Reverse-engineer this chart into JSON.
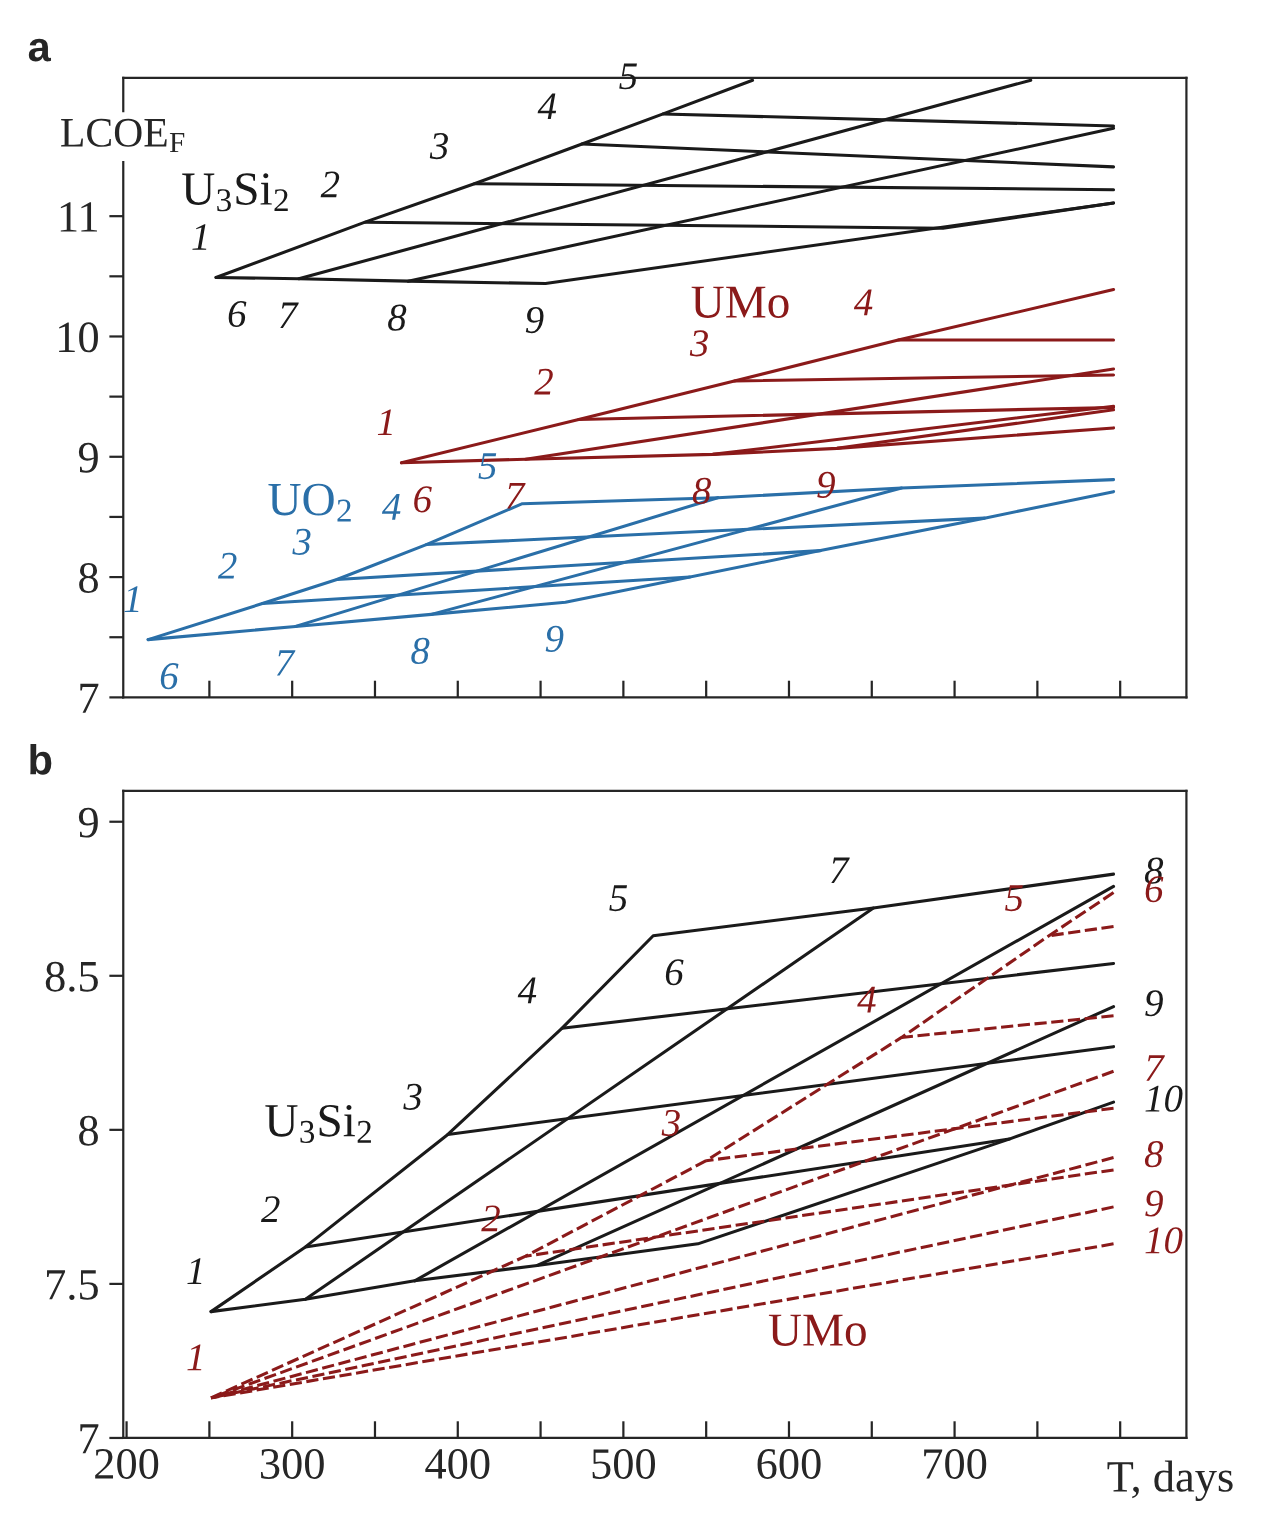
{
  "chart_data": [
    {
      "type": "line",
      "title": "a",
      "ylabel": "LCOE$_{F}$",
      "xlim": [
        198,
        840
      ],
      "xticks": [
        {
          "value": 250,
          "label": null
        },
        {
          "value": 300,
          "label": null
        },
        {
          "value": 350,
          "label": null
        },
        {
          "value": 400,
          "label": null
        },
        {
          "value": 450,
          "label": null
        },
        {
          "value": 500,
          "label": null
        },
        {
          "value": 550,
          "label": null
        },
        {
          "value": 600,
          "label": null
        },
        {
          "value": 650,
          "label": null
        },
        {
          "value": 700,
          "label": null
        },
        {
          "value": 750,
          "label": null
        },
        {
          "value": 800,
          "label": null
        }
      ],
      "ylim": [
        7,
        12.15
      ],
      "yticks": [
        7,
        {
          "value": 7.5,
          "label": null
        },
        8,
        {
          "value": 8.5,
          "label": null
        },
        9,
        {
          "value": 9.5,
          "label": null
        },
        10,
        {
          "value": 10.5,
          "label": null
        },
        11
      ],
      "tick_labels": "y",
      "series": [
        {
          "name": "U$_{3}$Si$_{2}$",
          "color": "#1a1a1a",
          "x": [
            254,
            344,
            410,
            475,
            524,
            578
          ],
          "values": [
            10.49,
            10.95,
            11.27,
            11.6,
            11.85,
            12.13
          ]
        },
        {
          "color": "#1a1a1a",
          "x": [
            254,
            304,
            370,
            453,
            796
          ],
          "values": [
            10.49,
            10.48,
            10.46,
            10.44,
            11.11
          ]
        },
        {
          "color": "#1a1a1a",
          "x": [
            344,
            693,
            796
          ],
          "values": [
            10.95,
            10.9,
            11.11
          ]
        },
        {
          "color": "#1a1a1a",
          "x": [
            410,
            796
          ],
          "values": [
            11.27,
            11.22
          ]
        },
        {
          "color": "#1a1a1a",
          "x": [
            475,
            796
          ],
          "values": [
            11.6,
            11.41
          ]
        },
        {
          "color": "#1a1a1a",
          "x": [
            524,
            796
          ],
          "values": [
            11.85,
            11.75
          ]
        },
        {
          "color": "#1a1a1a",
          "x": [
            304,
            746
          ],
          "values": [
            10.48,
            12.13
          ]
        },
        {
          "color": "#1a1a1a",
          "x": [
            370,
            796
          ],
          "values": [
            10.46,
            11.73
          ]
        },
        {
          "name": "UMo",
          "color": "#8b1a1a",
          "x": [
            366,
            473,
            567,
            666,
            796
          ],
          "values": [
            8.95,
            9.31,
            9.63,
            9.97,
            10.39
          ]
        },
        {
          "color": "#8b1a1a",
          "x": [
            366,
            441,
            554,
            629,
            796
          ],
          "values": [
            8.95,
            8.98,
            9.02,
            9.07,
            9.24
          ]
        },
        {
          "color": "#8b1a1a",
          "x": [
            473,
            796
          ],
          "values": [
            9.31,
            9.41
          ]
        },
        {
          "color": "#8b1a1a",
          "x": [
            567,
            796
          ],
          "values": [
            9.63,
            9.68
          ]
        },
        {
          "color": "#8b1a1a",
          "x": [
            666,
            796
          ],
          "values": [
            9.97,
            9.97
          ]
        },
        {
          "color": "#8b1a1a",
          "x": [
            441,
            796
          ],
          "values": [
            8.98,
            9.73
          ]
        },
        {
          "color": "#8b1a1a",
          "x": [
            554,
            796
          ],
          "values": [
            9.02,
            9.42
          ]
        },
        {
          "color": "#8b1a1a",
          "x": [
            629,
            796
          ],
          "values": [
            9.07,
            9.39
          ]
        },
        {
          "name": "UO$_{2}$",
          "color": "#2a6fa8",
          "x": [
            213,
            282,
            327,
            381,
            439,
            557,
            668,
            796
          ],
          "values": [
            7.48,
            7.78,
            7.98,
            8.27,
            8.61,
            8.66,
            8.74,
            8.81
          ]
        },
        {
          "color": "#2a6fa8",
          "x": [
            213,
            302,
            384,
            465,
            619,
            718,
            796
          ],
          "values": [
            7.48,
            7.59,
            7.69,
            7.79,
            8.22,
            8.49,
            8.71
          ]
        },
        {
          "color": "#2a6fa8",
          "x": [
            282,
            540
          ],
          "values": [
            7.78,
            8.0
          ]
        },
        {
          "color": "#2a6fa8",
          "x": [
            327,
            619
          ],
          "values": [
            7.98,
            8.22
          ]
        },
        {
          "color": "#2a6fa8",
          "x": [
            381,
            718
          ],
          "values": [
            8.27,
            8.49
          ]
        },
        {
          "color": "#2a6fa8",
          "x": [
            302,
            557
          ],
          "values": [
            7.59,
            8.66
          ]
        },
        {
          "color": "#2a6fa8",
          "x": [
            384,
            668
          ],
          "values": [
            7.69,
            8.74
          ]
        }
      ],
      "annotations": [
        {
          "text": "1",
          "x": 254,
          "y": 10.49
        },
        {
          "text": "2",
          "x": 344,
          "y": 10.95
        },
        {
          "text": "3",
          "x": 410,
          "y": 11.27
        },
        {
          "text": "4",
          "x": 475,
          "y": 11.6
        },
        {
          "text": "5",
          "x": 524,
          "y": 11.85
        },
        {
          "text": "6",
          "x": 254,
          "y": 10.49
        },
        {
          "text": "7",
          "x": 304,
          "y": 10.48
        },
        {
          "text": "8",
          "x": 370,
          "y": 10.46
        },
        {
          "text": "9",
          "x": 453,
          "y": 10.44
        },
        {
          "text": "1",
          "x": 366,
          "y": 8.95
        },
        {
          "text": "2",
          "x": 473,
          "y": 9.31
        },
        {
          "text": "3",
          "x": 567,
          "y": 9.63
        },
        {
          "text": "4",
          "x": 666,
          "y": 9.97
        },
        {
          "text": "6",
          "x": 366,
          "y": 8.95
        },
        {
          "text": "7",
          "x": 441,
          "y": 8.98
        },
        {
          "text": "8",
          "x": 554,
          "y": 9.02
        },
        {
          "text": "9",
          "x": 629,
          "y": 9.07
        },
        {
          "text": "1",
          "x": 213,
          "y": 7.48
        },
        {
          "text": "2",
          "x": 282,
          "y": 7.78
        },
        {
          "text": "3",
          "x": 327,
          "y": 7.98
        },
        {
          "text": "4",
          "x": 381,
          "y": 8.27
        },
        {
          "text": "5",
          "x": 439,
          "y": 8.61
        },
        {
          "text": "6",
          "x": 213,
          "y": 7.48
        },
        {
          "text": "7",
          "x": 302,
          "y": 7.59
        },
        {
          "text": "8",
          "x": 384,
          "y": 7.69
        },
        {
          "text": "9",
          "x": 465,
          "y": 7.79
        }
      ]
    },
    {
      "type": "line",
      "title": "b",
      "xlabel": "T, days",
      "xlim": [
        198,
        840
      ],
      "xticks": [
        200,
        {
          "value": 250,
          "label": null
        },
        300,
        {
          "value": 350,
          "label": null
        },
        400,
        {
          "value": 450,
          "label": null
        },
        500,
        {
          "value": 550,
          "label": null
        },
        600,
        {
          "value": 650,
          "label": null
        },
        700,
        {
          "value": 750,
          "label": null
        },
        {
          "value": 800,
          "label": null
        }
      ],
      "ylim": [
        7,
        9.1
      ],
      "yticks": [
        7,
        7.5,
        8,
        8.5,
        9
      ],
      "series": [
        {
          "name": "U$_{3}$Si$_{2}$",
          "color": "#1a1a1a",
          "x": [
            251,
            308,
            394,
            463,
            518,
            651,
            796
          ],
          "values": [
            7.41,
            7.62,
            7.985,
            8.33,
            8.63,
            8.72,
            8.83
          ]
        },
        {
          "color": "#1a1a1a",
          "x": [
            251,
            308,
            374,
            448,
            545,
            733,
            796
          ],
          "values": [
            7.41,
            7.45,
            7.51,
            7.56,
            7.63,
            7.97,
            8.09
          ]
        },
        {
          "color": "#1a1a1a",
          "x": [
            308,
            733
          ],
          "values": [
            7.62,
            7.97
          ]
        },
        {
          "color": "#1a1a1a",
          "x": [
            394,
            796
          ],
          "values": [
            7.985,
            8.27
          ]
        },
        {
          "color": "#1a1a1a",
          "x": [
            463,
            796
          ],
          "values": [
            8.33,
            8.54
          ]
        },
        {
          "color": "#1a1a1a",
          "x": [
            308,
            651
          ],
          "values": [
            7.45,
            8.72
          ]
        },
        {
          "color": "#1a1a1a",
          "x": [
            374,
            796
          ],
          "values": [
            7.51,
            8.79
          ]
        },
        {
          "color": "#1a1a1a",
          "x": [
            448,
            796
          ],
          "values": [
            7.56,
            8.4
          ]
        },
        {
          "name": "UMo",
          "color": "#8b1a1a",
          "line_style": "dashed",
          "x": [
            796,
            757,
            668,
            550,
            441,
            251
          ],
          "values": [
            8.77,
            8.63,
            8.3,
            7.9,
            7.59,
            7.13
          ]
        },
        {
          "color": "#8b1a1a",
          "line_style": "dashed",
          "x": [
            796,
            441
          ],
          "values": [
            7.87,
            7.59
          ]
        },
        {
          "color": "#8b1a1a",
          "line_style": "dashed",
          "x": [
            796,
            550
          ],
          "values": [
            8.07,
            7.9
          ]
        },
        {
          "color": "#8b1a1a",
          "line_style": "dashed",
          "x": [
            796,
            668
          ],
          "values": [
            8.37,
            8.3
          ]
        },
        {
          "color": "#8b1a1a",
          "line_style": "dashed",
          "x": [
            796,
            757
          ],
          "values": [
            8.66,
            8.63
          ]
        },
        {
          "color": "#8b1a1a",
          "line_style": "dashed",
          "x": [
            796,
            251
          ],
          "values": [
            8.19,
            7.13
          ]
        },
        {
          "color": "#8b1a1a",
          "line_style": "dashed",
          "x": [
            796,
            251
          ],
          "values": [
            7.91,
            7.13
          ]
        },
        {
          "color": "#8b1a1a",
          "line_style": "dashed",
          "x": [
            796,
            251
          ],
          "values": [
            7.75,
            7.13
          ]
        },
        {
          "color": "#8b1a1a",
          "line_style": "dashed",
          "x": [
            796,
            251
          ],
          "values": [
            7.63,
            7.13
          ]
        }
      ],
      "annotations": [
        {
          "text": "1",
          "x": 251,
          "y": 7.41
        },
        {
          "text": "2",
          "x": 308,
          "y": 7.62
        },
        {
          "text": "3",
          "x": 394,
          "y": 7.985
        },
        {
          "text": "4",
          "x": 463,
          "y": 8.33
        },
        {
          "text": "5",
          "x": 518,
          "y": 8.63
        },
        {
          "text": "6",
          "x": 518,
          "y": 8.63
        },
        {
          "text": "7",
          "x": 651,
          "y": 8.72
        },
        {
          "text": "8",
          "x": 796,
          "y": 8.83
        },
        {
          "text": "9",
          "x": 796,
          "y": 8.4
        },
        {
          "text": "10",
          "x": 796,
          "y": 8.09
        },
        {
          "text": "1",
          "x": 251,
          "y": 7.13
        },
        {
          "text": "2",
          "x": 441,
          "y": 7.59
        },
        {
          "text": "3",
          "x": 550,
          "y": 7.9
        },
        {
          "text": "4",
          "x": 668,
          "y": 8.3
        },
        {
          "text": "5",
          "x": 757,
          "y": 8.63
        },
        {
          "text": "6",
          "x": 796,
          "y": 8.77
        },
        {
          "text": "7",
          "x": 796,
          "y": 8.19
        },
        {
          "text": "8",
          "x": 796,
          "y": 7.91
        },
        {
          "text": "9",
          "x": 796,
          "y": 7.75
        },
        {
          "text": "10",
          "x": 796,
          "y": 7.63
        }
      ]
    }
  ]
}
